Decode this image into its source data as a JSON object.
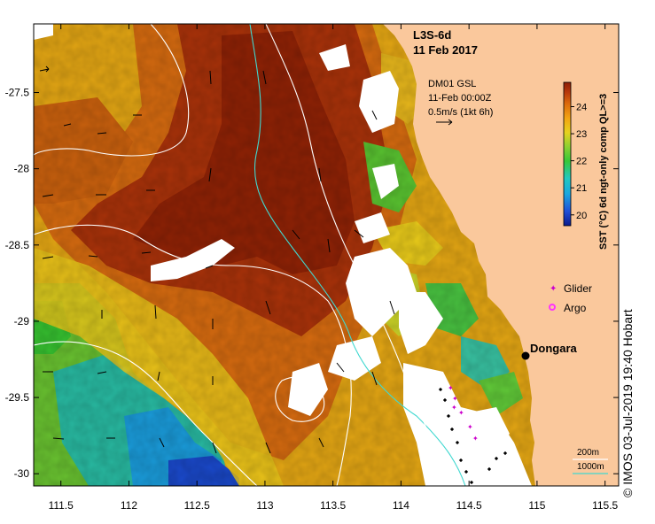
{
  "map": {
    "title_line1": "L3S-6d",
    "title_line2": "11 Feb 2017",
    "wind": {
      "source": "DM01 GSL",
      "time": "11-Feb 00:00Z",
      "scale": "0.5m/s (1kt 6h)"
    },
    "colorbar": {
      "label": "SST (°C) 6d ngt-only comp QL>=3",
      "ticks": [
        "20",
        "21",
        "22",
        "23",
        "24"
      ],
      "range": [
        19.6,
        24.9
      ]
    },
    "legend": {
      "glider": "Glider",
      "glider_color": "#cc00cc",
      "argo": "Argo",
      "argo_color": "#ff33ff"
    },
    "place": {
      "name": "Dongara",
      "lon": 114.92,
      "lat": -29.25
    },
    "bathymetry": {
      "contour_200": "200m",
      "contour_1000": "1000m",
      "contour_200_color": "#ffffff",
      "contour_1000_color": "#40d8d0"
    },
    "lon_ticks": [
      "111.5",
      "112",
      "112.5",
      "113",
      "113.5",
      "114",
      "114.5",
      "115",
      "115.5"
    ],
    "lat_ticks": [
      "-27.5",
      "-28",
      "-28.5",
      "-29",
      "-29.5",
      "-30"
    ],
    "lon_range": [
      111.3,
      115.6
    ],
    "lat_range": [
      -30.08,
      -27.05
    ],
    "land_color": "#fac89c",
    "credit": "© IMOS 03-Jul-2019 19:40 Hobart"
  }
}
